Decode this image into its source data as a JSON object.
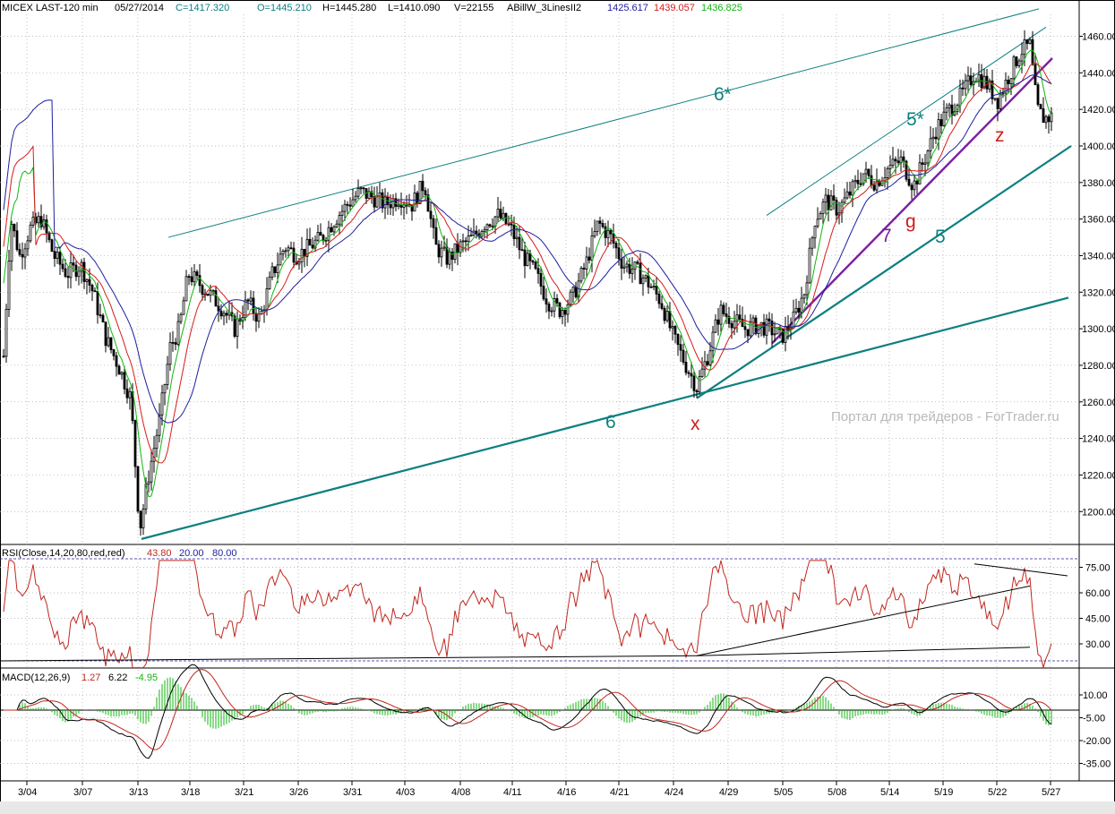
{
  "header": {
    "symbol": "MICEX LAST-120 min",
    "date": "05/27/2014",
    "close": "C=1417.320",
    "open": "O=1445.210",
    "high": "H=1445.280",
    "low": "L=1410.090",
    "volume": "V=22155",
    "indicator": "ABillW_3LinesII2",
    "ind_v1": "1425.617",
    "ind_v2": "1439.057",
    "ind_v3": "1436.825"
  },
  "watermark": "Портал для трейдеров - ForTrader.ru",
  "rsi_header": {
    "label": "RSI(Close,14,20,80,red,red)",
    "value": "43.80",
    "lo": "20.00",
    "hi": "80.00"
  },
  "macd_header": {
    "label": "MACD(12,26,9)",
    "v1": "1.27",
    "v2": "6.22",
    "v3": "-4.95"
  },
  "annotations": [
    {
      "text": "6*",
      "color": "#0e7f80"
    },
    {
      "text": "5*",
      "color": "#0e7f80"
    },
    {
      "text": "5",
      "color": "#0e7f80"
    },
    {
      "text": "6",
      "color": "#0e7f80"
    },
    {
      "text": "7",
      "color": "#7b1fa2"
    },
    {
      "text": "g",
      "color": "#d01c1c"
    },
    {
      "text": "z",
      "color": "#d01c1c"
    },
    {
      "text": "x",
      "color": "#d01c1c"
    }
  ],
  "colors": {
    "candle": "#000000",
    "green_ma": "#13b513",
    "red_ma": "#d81b1b",
    "blue_ma": "#1e1e9e",
    "trend": "#0e7f80",
    "purple": "#7b1fa2",
    "rsi": "#c0271e"
  },
  "chart_data": [
    {
      "type": "candlestick",
      "title": "MICEX LAST-120 min",
      "ylim": [
        1182,
        1472
      ],
      "y_ticks": [
        1200,
        1220,
        1240,
        1260,
        1280,
        1300,
        1320,
        1340,
        1360,
        1380,
        1400,
        1420,
        1440,
        1460
      ],
      "y_tick_labels": [
        "1200.00",
        "1220.00",
        "1240.00",
        "1260.00",
        "1280.00",
        "1300.00",
        "1320.00",
        "1340.00",
        "1360.00",
        "1380.00",
        "1400.00",
        "1420.00",
        "1440.00",
        "1460.00"
      ],
      "x_tick_labels": [
        "3/04",
        "3/07",
        "3/13",
        "3/18",
        "3/21",
        "3/26",
        "3/31",
        "4/03",
        "4/08",
        "4/11",
        "4/16",
        "4/21",
        "4/24",
        "4/29",
        "5/05",
        "5/08",
        "5/14",
        "5/19",
        "5/22",
        "5/27"
      ],
      "grid": true,
      "key_points": [
        {
          "x": "3/04",
          "y": 1430
        },
        {
          "x": "3/13",
          "y": 1185
        },
        {
          "x": "3/18",
          "y": 1350
        },
        {
          "x": "4/03",
          "y": 1385
        },
        {
          "x": "4/24",
          "y": 1262
        },
        {
          "x": "5/05",
          "y": 1295
        },
        {
          "x": "5/14",
          "y": 1385
        },
        {
          "x": "5/22",
          "y": 1455
        },
        {
          "x": "5/27",
          "y": 1417
        }
      ],
      "last": {
        "open": 1445.21,
        "high": 1445.28,
        "low": 1410.09,
        "close": 1417.32
      }
    },
    {
      "type": "line",
      "title": "RSI(Close,14,20,80,red,red)",
      "ylim": [
        15,
        80
      ],
      "y_ticks": [
        30,
        45,
        60,
        75
      ],
      "y_tick_labels": [
        "30.00",
        "45.00",
        "60.00",
        "75.00"
      ],
      "levels": [
        20,
        80
      ],
      "last": 43.8
    },
    {
      "type": "line",
      "title": "MACD(12,26,9)",
      "ylim": [
        -45,
        20
      ],
      "y_ticks": [
        10,
        -5,
        -20,
        -35
      ],
      "y_tick_labels": [
        "10.00",
        "-5.00",
        "-20.00",
        "-35.00"
      ],
      "series": [
        {
          "name": "",
          "last": 1.27
        },
        {
          "name": "",
          "last": 6.22
        },
        {
          "name": "",
          "last": -4.95
        }
      ]
    }
  ]
}
